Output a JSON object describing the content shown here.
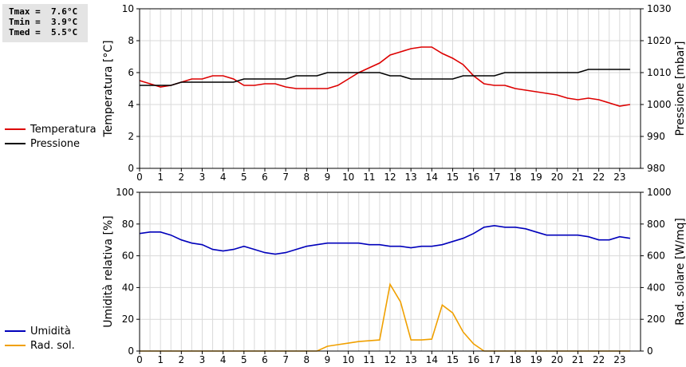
{
  "stats": {
    "tmax": "Tmax =  7.6°C",
    "tmin": "Tmin =  3.9°C",
    "tmed": "Tmed =  5.5°C"
  },
  "legend_top": [
    {
      "label": "Temperatura",
      "color": "#dd0000"
    },
    {
      "label": "Pressione",
      "color": "#000000"
    }
  ],
  "legend_bottom": [
    {
      "label": "Umidità",
      "color": "#0000bb"
    },
    {
      "label": "Rad. sol.",
      "color": "#f0a000"
    }
  ],
  "chart_data": [
    {
      "type": "line",
      "xlim": [
        0,
        24
      ],
      "xticks": [
        0,
        1,
        2,
        3,
        4,
        5,
        6,
        7,
        8,
        9,
        10,
        11,
        12,
        13,
        14,
        15,
        16,
        17,
        18,
        19,
        20,
        21,
        22,
        23
      ],
      "ylabel_left": "Temperatura [°C]",
      "ylim_left": [
        0,
        10
      ],
      "yticks_left": [
        0,
        2,
        4,
        6,
        8,
        10
      ],
      "ylabel_right": "Pressione [mbar]",
      "ylim_right": [
        980,
        1030
      ],
      "yticks_right": [
        980,
        990,
        1000,
        1010,
        1020,
        1030
      ],
      "grid": true,
      "series": [
        {
          "name": "Temperatura",
          "axis": "left",
          "color": "#dd0000",
          "x": [
            0,
            0.5,
            1,
            1.5,
            2,
            2.5,
            3,
            3.5,
            4,
            4.5,
            5,
            5.5,
            6,
            6.5,
            7,
            7.5,
            8,
            8.5,
            9,
            9.5,
            10,
            10.5,
            11,
            11.5,
            12,
            12.5,
            13,
            13.5,
            14,
            14.5,
            15,
            15.5,
            16,
            16.5,
            17,
            17.5,
            18,
            18.5,
            19,
            19.5,
            20,
            20.5,
            21,
            21.5,
            22,
            22.5,
            23,
            23.5
          ],
          "y": [
            5.5,
            5.3,
            5.1,
            5.2,
            5.4,
            5.6,
            5.6,
            5.8,
            5.8,
            5.6,
            5.2,
            5.2,
            5.3,
            5.3,
            5.1,
            5.0,
            5.0,
            5.0,
            5.0,
            5.2,
            5.6,
            6.0,
            6.3,
            6.6,
            7.1,
            7.3,
            7.5,
            7.6,
            7.6,
            7.2,
            6.9,
            6.5,
            5.8,
            5.3,
            5.2,
            5.2,
            5.0,
            4.9,
            4.8,
            4.7,
            4.6,
            4.4,
            4.3,
            4.4,
            4.3,
            4.1,
            3.9,
            4.0
          ]
        },
        {
          "name": "Pressione",
          "axis": "right",
          "color": "#000000",
          "x": [
            0,
            0.5,
            1,
            1.5,
            2,
            2.5,
            3,
            3.5,
            4,
            4.5,
            5,
            5.5,
            6,
            6.5,
            7,
            7.5,
            8,
            8.5,
            9,
            9.5,
            10,
            10.5,
            11,
            11.5,
            12,
            12.5,
            13,
            13.5,
            14,
            14.5,
            15,
            15.5,
            16,
            16.5,
            17,
            17.5,
            18,
            18.5,
            19,
            19.5,
            20,
            20.5,
            21,
            21.5,
            22,
            22.5,
            23,
            23.5
          ],
          "y": [
            1006,
            1006,
            1006,
            1006,
            1007,
            1007,
            1007,
            1007,
            1007,
            1007,
            1008,
            1008,
            1008,
            1008,
            1008,
            1009,
            1009,
            1009,
            1010,
            1010,
            1010,
            1010,
            1010,
            1010,
            1009,
            1009,
            1008,
            1008,
            1008,
            1008,
            1008,
            1009,
            1009,
            1009,
            1009,
            1010,
            1010,
            1010,
            1010,
            1010,
            1010,
            1010,
            1010,
            1011,
            1011,
            1011,
            1011,
            1011
          ]
        }
      ]
    },
    {
      "type": "line",
      "xlim": [
        0,
        24
      ],
      "xticks": [
        0,
        1,
        2,
        3,
        4,
        5,
        6,
        7,
        8,
        9,
        10,
        11,
        12,
        13,
        14,
        15,
        16,
        17,
        18,
        19,
        20,
        21,
        22,
        23
      ],
      "ylabel_left": "Umidità relativa [%]",
      "ylim_left": [
        0,
        100
      ],
      "yticks_left": [
        0,
        20,
        40,
        60,
        80,
        100
      ],
      "ylabel_right": "Rad. solare [W/mq]",
      "ylim_right": [
        0,
        1000
      ],
      "yticks_right": [
        0,
        200,
        400,
        600,
        800,
        1000
      ],
      "grid": true,
      "series": [
        {
          "name": "Umidità",
          "axis": "left",
          "color": "#0000bb",
          "x": [
            0,
            0.5,
            1,
            1.5,
            2,
            2.5,
            3,
            3.5,
            4,
            4.5,
            5,
            5.5,
            6,
            6.5,
            7,
            7.5,
            8,
            8.5,
            9,
            9.5,
            10,
            10.5,
            11,
            11.5,
            12,
            12.5,
            13,
            13.5,
            14,
            14.5,
            15,
            15.5,
            16,
            16.5,
            17,
            17.5,
            18,
            18.5,
            19,
            19.5,
            20,
            20.5,
            21,
            21.5,
            22,
            22.5,
            23,
            23.5
          ],
          "y": [
            74,
            75,
            75,
            73,
            70,
            68,
            67,
            64,
            63,
            64,
            66,
            64,
            62,
            61,
            62,
            64,
            66,
            67,
            68,
            68,
            68,
            68,
            67,
            67,
            66,
            66,
            65,
            66,
            66,
            67,
            69,
            71,
            74,
            78,
            79,
            78,
            78,
            77,
            75,
            73,
            73,
            73,
            73,
            72,
            70,
            70,
            72,
            71
          ]
        },
        {
          "name": "Rad. sol.",
          "axis": "right",
          "color": "#f0a000",
          "x": [
            0,
            0.5,
            1,
            1.5,
            2,
            2.5,
            3,
            3.5,
            4,
            4.5,
            5,
            5.5,
            6,
            6.5,
            7,
            7.5,
            8,
            8.5,
            9,
            9.5,
            10,
            10.5,
            11,
            11.5,
            12,
            12.5,
            13,
            13.5,
            14,
            14.5,
            15,
            15.5,
            16,
            16.5,
            17,
            17.5,
            18,
            18.5,
            19,
            19.5,
            20,
            20.5,
            21,
            21.5,
            22,
            22.5,
            23,
            23.5
          ],
          "y": [
            0,
            0,
            0,
            0,
            0,
            0,
            0,
            0,
            0,
            0,
            0,
            0,
            0,
            0,
            0,
            0,
            0,
            0,
            30,
            40,
            50,
            60,
            65,
            70,
            420,
            310,
            70,
            70,
            75,
            290,
            240,
            120,
            45,
            0,
            0,
            0,
            0,
            0,
            0,
            0,
            0,
            0,
            0,
            0,
            0,
            0,
            0,
            0
          ]
        }
      ]
    }
  ]
}
